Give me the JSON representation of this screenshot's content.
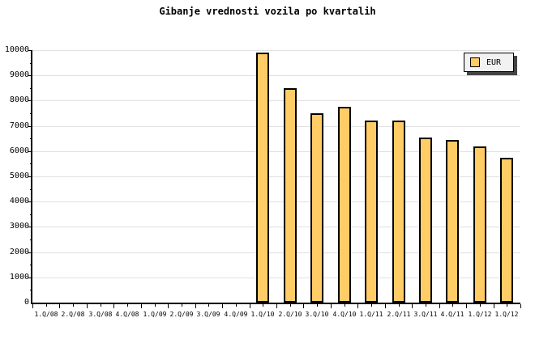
{
  "title": "Gibanje vrednosti vozila po kvartalih",
  "legend": {
    "label": "EUR"
  },
  "colors": {
    "background": "#FFFFFF",
    "bar_fill": "#FFCC66",
    "bar_border": "#000000",
    "grid": "#E0E0E0",
    "axis": "#000000",
    "legend_bg": "#F2F2F2",
    "legend_shadow": "#444444",
    "text": "#000000"
  },
  "chart_data": {
    "type": "bar",
    "title": "Gibanje vrednosti vozila po kvartalih",
    "categories": [
      "1.Q/08",
      "2.Q/08",
      "3.Q/08",
      "4.Q/08",
      "1.Q/09",
      "2.Q/09",
      "3.Q/09",
      "4.Q/09",
      "1.Q/10",
      "2.Q/10",
      "3.Q/10",
      "4.Q/10",
      "1.Q/11",
      "2.Q/11",
      "3.Q/11",
      "4.Q/11",
      "1.Q/12",
      "1.Q/12"
    ],
    "series": [
      {
        "name": "EUR",
        "values": [
          null,
          null,
          null,
          null,
          null,
          null,
          null,
          null,
          9900,
          8500,
          7500,
          7750,
          7200,
          7200,
          6550,
          6450,
          6200,
          5750
        ]
      }
    ],
    "xlabel": "",
    "ylabel": "",
    "ylim": [
      0,
      10000
    ],
    "ytick_major_step": 1000,
    "ytick_minor_step": 500,
    "grid": "horizontal",
    "legend_position": "top-right"
  }
}
